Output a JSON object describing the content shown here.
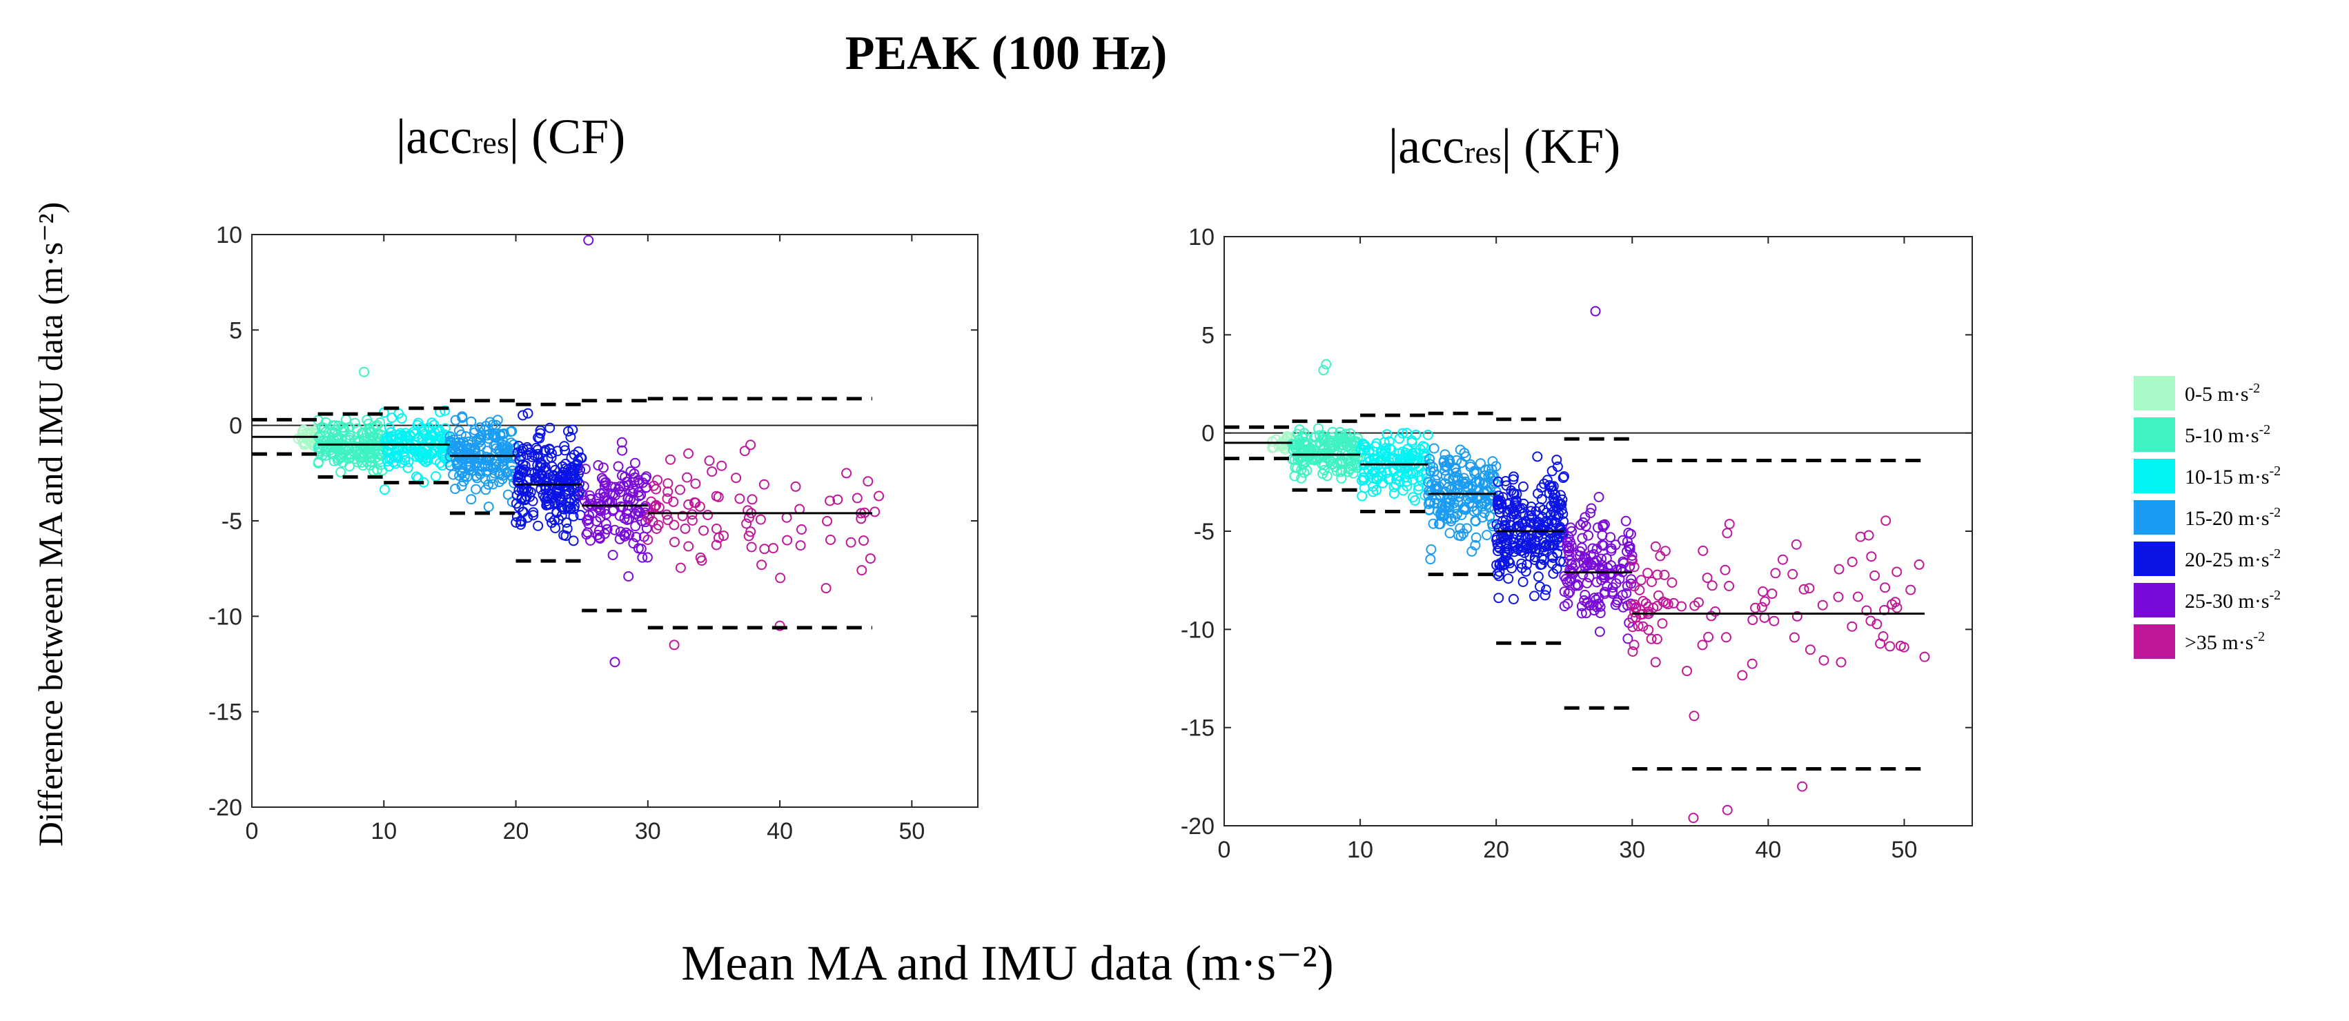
{
  "figure": {
    "title": "PEAK (100 Hz)",
    "ylabel": "Difference between MA and IMU data (m·s⁻²)",
    "xlabel": "Mean MA and IMU data (m·s⁻²)"
  },
  "legend": {
    "items": [
      {
        "label_main": "0-5 m·s",
        "label_sup": "-2",
        "color": "#a8f8c8"
      },
      {
        "label_main": "5-10 m·s",
        "label_sup": "-2",
        "color": "#3ef2c4"
      },
      {
        "label_main": "10-15 m·s",
        "label_sup": "-2",
        "color": "#00f4f4"
      },
      {
        "label_main": "15-20 m·s",
        "label_sup": "-2",
        "color": "#1a9cf2"
      },
      {
        "label_main": "20-25 m·s",
        "label_sup": "-2",
        "color": "#0a14e6"
      },
      {
        "label_main": "25-30 m·s",
        "label_sup": "-2",
        "color": "#7a0ad8"
      },
      {
        "label_main": ">35 m·s",
        "label_sup": "-2",
        "color": "#c0169a"
      }
    ]
  },
  "chart_data": [
    {
      "type": "scatter",
      "title_pre": "|acc",
      "title_sub": "res",
      "title_post": "| (CF)",
      "xlabel": "",
      "ylabel": "",
      "xlim": [
        0,
        55
      ],
      "ylim": [
        -20,
        10
      ],
      "xticks": [
        "0",
        "10",
        "20",
        "30",
        "40",
        "50"
      ],
      "yticks": [
        "10",
        "5",
        "0",
        "-5",
        "-10",
        "-15",
        "-20"
      ],
      "zero_line": 0,
      "groups": [
        {
          "range": "0-5",
          "color": "#a8f8c8",
          "x_range": [
            3.5,
            5
          ],
          "y_center": -0.6,
          "y_spread": 0.6,
          "count": 25,
          "mean_line": {
            "x": [
              0,
              5
            ],
            "y": -0.6
          },
          "loa_upper": {
            "x": [
              0,
              5
            ],
            "y": 0.3
          },
          "loa_lower": {
            "x": [
              0,
              5
            ],
            "y": -1.5
          }
        },
        {
          "range": "5-10",
          "color": "#3ef2c4",
          "x_range": [
            5,
            10
          ],
          "y_center": -1.0,
          "y_spread": 1.2,
          "count": 170,
          "mean_line": {
            "x": [
              5,
              10
            ],
            "y": -1.0
          },
          "loa_upper": {
            "x": [
              5,
              10
            ],
            "y": 0.6
          },
          "loa_lower": {
            "x": [
              5,
              10
            ],
            "y": -2.7
          }
        },
        {
          "range": "10-15",
          "color": "#00f4f4",
          "x_range": [
            10,
            15
          ],
          "y_center": -1.1,
          "y_spread": 1.3,
          "count": 150,
          "mean_line": {
            "x": [
              10,
              15
            ],
            "y": -1.0
          },
          "loa_upper": {
            "x": [
              10,
              15
            ],
            "y": 0.9
          },
          "loa_lower": {
            "x": [
              10,
              15
            ],
            "y": -3.0
          }
        },
        {
          "range": "15-20",
          "color": "#1a9cf2",
          "x_range": [
            15,
            20
          ],
          "y_center": -1.7,
          "y_spread": 1.8,
          "count": 190,
          "mean_line": {
            "x": [
              15,
              20
            ],
            "y": -1.6
          },
          "loa_upper": {
            "x": [
              15,
              20
            ],
            "y": 1.3
          },
          "loa_lower": {
            "x": [
              15,
              20
            ],
            "y": -4.6
          }
        },
        {
          "range": "20-25",
          "color": "#0a14e6",
          "x_range": [
            20,
            25
          ],
          "y_center": -3.0,
          "y_spread": 2.3,
          "count": 230,
          "mean_line": {
            "x": [
              20,
              25
            ],
            "y": -3.1
          },
          "loa_upper": {
            "x": [
              20,
              25
            ],
            "y": 1.1
          },
          "loa_lower": {
            "x": [
              20,
              25
            ],
            "y": -7.1
          }
        },
        {
          "range": "25-30",
          "color": "#7a0ad8",
          "x_range": [
            25,
            30
          ],
          "y_center": -4.2,
          "y_spread": 2.6,
          "count": 130,
          "mean_line": {
            "x": [
              25,
              30
            ],
            "y": -4.2
          },
          "loa_upper": {
            "x": [
              25,
              30
            ],
            "y": 1.3
          },
          "loa_lower": {
            "x": [
              25,
              30
            ],
            "y": -9.7
          }
        },
        {
          "range": ">35",
          "color": "#c0169a",
          "x_range": [
            30,
            47.5
          ],
          "y_center": -4.6,
          "y_spread": 3.0,
          "count": 90,
          "mean_line": {
            "x": [
              30,
              47
            ],
            "y": -4.6
          },
          "loa_upper": {
            "x": [
              30,
              47
            ],
            "y": 1.4
          },
          "loa_lower": {
            "x": [
              30,
              47
            ],
            "y": -10.6
          }
        }
      ],
      "outliers": [
        {
          "x": 25.5,
          "y": 9.7,
          "color": "#7a0ad8"
        },
        {
          "x": 8.5,
          "y": 2.8,
          "color": "#3ef2c4"
        },
        {
          "x": 27.5,
          "y": -12.4,
          "color": "#7a0ad8"
        },
        {
          "x": 32.0,
          "y": -11.5,
          "color": "#c0169a"
        },
        {
          "x": 40.0,
          "y": -10.5,
          "color": "#c0169a"
        },
        {
          "x": 47.5,
          "y": -3.7,
          "color": "#c0169a"
        }
      ]
    },
    {
      "type": "scatter",
      "title_pre": "|acc",
      "title_sub": "res",
      "title_post": "| (KF)",
      "xlabel": "",
      "ylabel": "",
      "xlim": [
        0,
        55
      ],
      "ylim": [
        -20,
        10
      ],
      "xticks": [
        "0",
        "10",
        "20",
        "30",
        "40",
        "50"
      ],
      "yticks": [
        "10",
        "5",
        "0",
        "-5",
        "-10",
        "-15",
        "-20"
      ],
      "zero_line": 0,
      "groups": [
        {
          "range": "0-5",
          "color": "#a8f8c8",
          "x_range": [
            3.5,
            5
          ],
          "y_center": -0.5,
          "y_spread": 0.5,
          "count": 25,
          "mean_line": {
            "x": [
              0,
              5
            ],
            "y": -0.5
          },
          "loa_upper": {
            "x": [
              0,
              5
            ],
            "y": 0.3
          },
          "loa_lower": {
            "x": [
              0,
              5
            ],
            "y": -1.3
          }
        },
        {
          "range": "5-10",
          "color": "#3ef2c4",
          "x_range": [
            5,
            10
          ],
          "y_center": -1.1,
          "y_spread": 1.2,
          "count": 170,
          "mean_line": {
            "x": [
              5,
              10
            ],
            "y": -1.1
          },
          "loa_upper": {
            "x": [
              5,
              10
            ],
            "y": 0.6
          },
          "loa_lower": {
            "x": [
              5,
              10
            ],
            "y": -2.9
          }
        },
        {
          "range": "10-15",
          "color": "#00f4f4",
          "x_range": [
            10,
            15
          ],
          "y_center": -1.6,
          "y_spread": 1.4,
          "count": 150,
          "mean_line": {
            "x": [
              10,
              15
            ],
            "y": -1.6
          },
          "loa_upper": {
            "x": [
              10,
              15
            ],
            "y": 0.9
          },
          "loa_lower": {
            "x": [
              10,
              15
            ],
            "y": -4.0
          }
        },
        {
          "range": "15-20",
          "color": "#1a9cf2",
          "x_range": [
            15,
            20
          ],
          "y_center": -3.1,
          "y_spread": 2.0,
          "count": 190,
          "mean_line": {
            "x": [
              15,
              20
            ],
            "y": -3.1
          },
          "loa_upper": {
            "x": [
              15,
              20
            ],
            "y": 1.0
          },
          "loa_lower": {
            "x": [
              15,
              20
            ],
            "y": -7.2
          }
        },
        {
          "range": "20-25",
          "color": "#0a14e6",
          "x_range": [
            20,
            25
          ],
          "y_center": -5.0,
          "y_spread": 2.8,
          "count": 260,
          "mean_line": {
            "x": [
              20,
              25
            ],
            "y": -5.0
          },
          "loa_upper": {
            "x": [
              20,
              25
            ],
            "y": 0.7
          },
          "loa_lower": {
            "x": [
              20,
              25
            ],
            "y": -10.7
          }
        },
        {
          "range": "25-30",
          "color": "#7a0ad8",
          "x_range": [
            25,
            30
          ],
          "y_center": -7.0,
          "y_spread": 3.0,
          "count": 150,
          "mean_line": {
            "x": [
              25,
              30
            ],
            "y": -7.1
          },
          "loa_upper": {
            "x": [
              25,
              30
            ],
            "y": -0.3
          },
          "loa_lower": {
            "x": [
              25,
              30
            ],
            "y": -14.0
          }
        },
        {
          "range": ">35",
          "color": "#c0169a",
          "x_range": [
            30,
            51.5
          ],
          "y_center": -9.0,
          "y_spread": 3.6,
          "count": 110,
          "mean_line": {
            "x": [
              30,
              51.5
            ],
            "y": -9.2
          },
          "loa_upper": {
            "x": [
              30,
              51.5
            ],
            "y": -1.4
          },
          "loa_lower": {
            "x": [
              30,
              51.5
            ],
            "y": -17.1
          }
        }
      ],
      "outliers": [
        {
          "x": 27.3,
          "y": 6.2,
          "color": "#7a0ad8"
        },
        {
          "x": 7.5,
          "y": 3.5,
          "color": "#3ef2c4"
        },
        {
          "x": 7.3,
          "y": 3.2,
          "color": "#3ef2c4"
        },
        {
          "x": 34.5,
          "y": -19.6,
          "color": "#c0169a"
        },
        {
          "x": 37.0,
          "y": -19.2,
          "color": "#c0169a"
        },
        {
          "x": 51.5,
          "y": -11.4,
          "color": "#c0169a"
        },
        {
          "x": 42.5,
          "y": -18.0,
          "color": "#c0169a"
        }
      ]
    }
  ]
}
